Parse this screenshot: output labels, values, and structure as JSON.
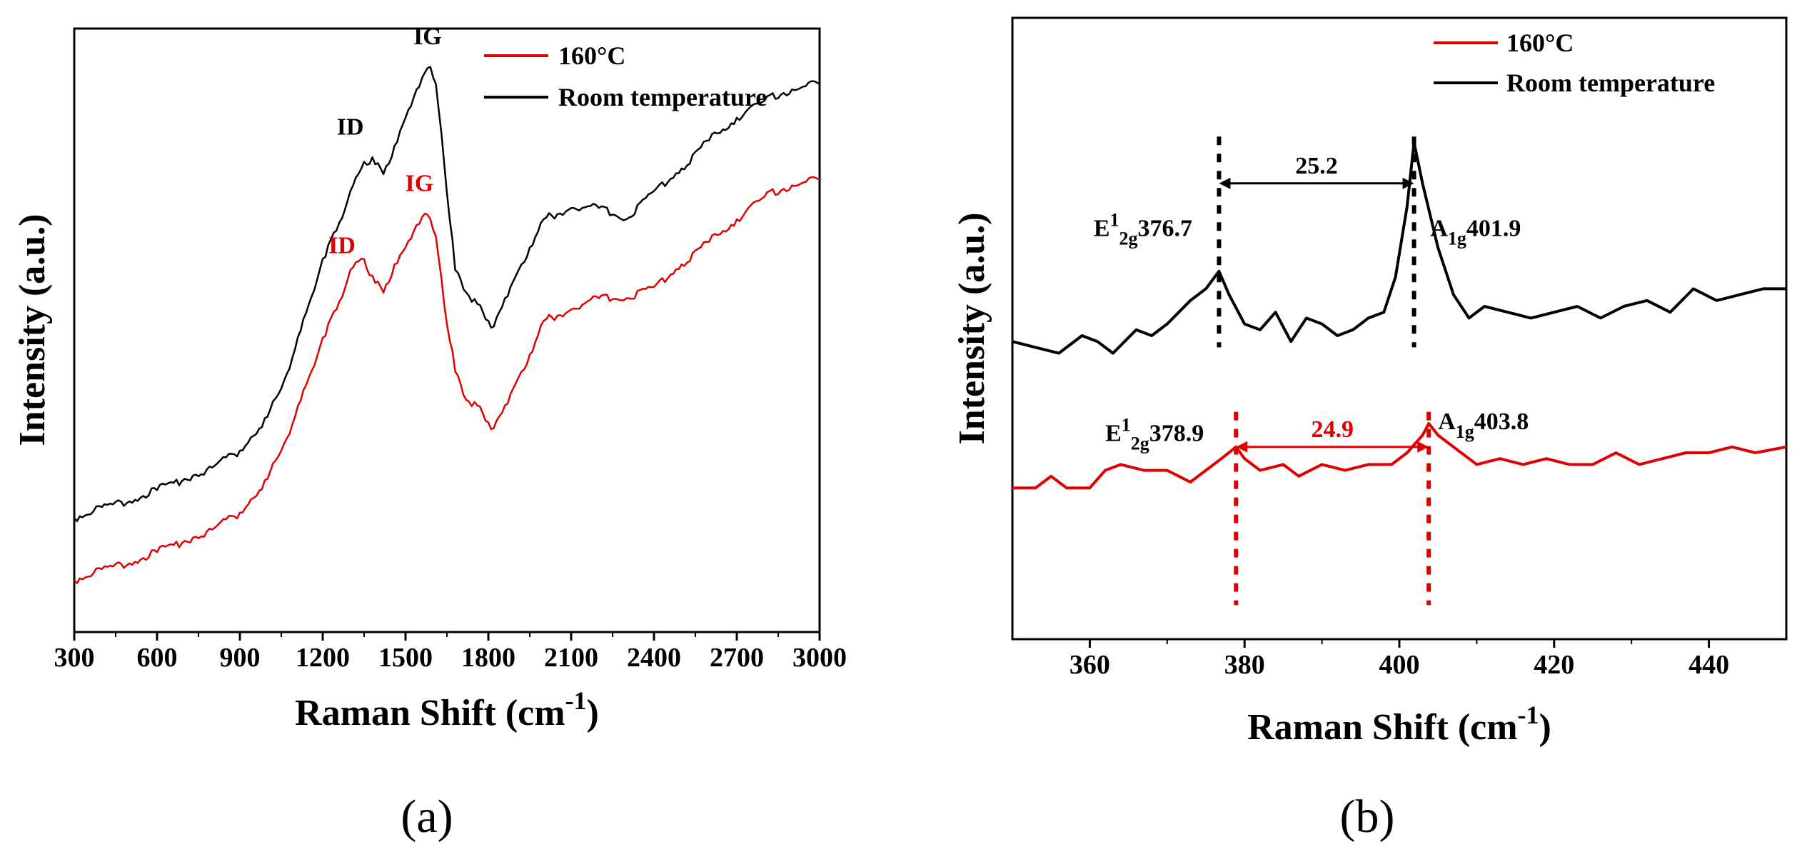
{
  "chart_data": [
    {
      "id": "a",
      "type": "line",
      "panel_label": "(a)",
      "xlabel": "Raman Shift (cm",
      "xlabel_sup": "-1",
      "xlabel_close": ")",
      "ylabel": "Intensity (a.u.)",
      "xlim": [
        300,
        3000
      ],
      "ylim": [
        0,
        1
      ],
      "xticks": [
        "300",
        "600",
        "900",
        "1200",
        "1500",
        "1800",
        "2100",
        "2400",
        "2700",
        "3000"
      ],
      "legend": [
        "160°C",
        "Room temperature"
      ],
      "series": [
        {
          "name": "160°C",
          "color": "#e00000",
          "x": [
            300,
            400,
            500,
            600,
            700,
            800,
            900,
            1000,
            1050,
            1100,
            1150,
            1200,
            1250,
            1300,
            1340,
            1380,
            1420,
            1460,
            1500,
            1540,
            1570,
            1590,
            1610,
            1640,
            1680,
            1720,
            1760,
            1800,
            1820,
            1860,
            1900,
            1950,
            2000,
            2100,
            2200,
            2300,
            2400,
            2500,
            2600,
            2700,
            2800,
            2900,
            3000
          ],
          "y": [
            0.06,
            0.08,
            0.09,
            0.11,
            0.13,
            0.15,
            0.18,
            0.24,
            0.29,
            0.35,
            0.42,
            0.49,
            0.54,
            0.61,
            0.63,
            0.6,
            0.57,
            0.62,
            0.65,
            0.69,
            0.71,
            0.7,
            0.67,
            0.55,
            0.43,
            0.38,
            0.37,
            0.34,
            0.33,
            0.37,
            0.41,
            0.46,
            0.52,
            0.54,
            0.56,
            0.56,
            0.58,
            0.62,
            0.66,
            0.7,
            0.74,
            0.76,
            0.77
          ]
        },
        {
          "name": "Room temperature",
          "color": "#000000",
          "x": [
            300,
            400,
            500,
            600,
            700,
            800,
            900,
            1000,
            1050,
            1100,
            1150,
            1200,
            1250,
            1300,
            1340,
            1380,
            1420,
            1460,
            1500,
            1540,
            1570,
            1590,
            1610,
            1640,
            1680,
            1720,
            1760,
            1800,
            1820,
            1860,
            1900,
            1950,
            2000,
            2100,
            2200,
            2300,
            2400,
            2500,
            2600,
            2700,
            2800,
            2900,
            3000
          ],
          "y": [
            0.17,
            0.19,
            0.2,
            0.22,
            0.24,
            0.26,
            0.29,
            0.35,
            0.4,
            0.47,
            0.55,
            0.63,
            0.68,
            0.75,
            0.79,
            0.81,
            0.78,
            0.83,
            0.88,
            0.93,
            0.96,
            0.97,
            0.94,
            0.8,
            0.61,
            0.57,
            0.55,
            0.52,
            0.51,
            0.56,
            0.6,
            0.65,
            0.7,
            0.72,
            0.72,
            0.7,
            0.75,
            0.79,
            0.84,
            0.88,
            0.91,
            0.93,
            0.94
          ]
        }
      ],
      "annotations": [
        {
          "text": "IG",
          "x": 1580,
          "y": 1.01,
          "color": "#000000"
        },
        {
          "text": "ID",
          "x": 1300,
          "y": 0.85,
          "color": "#000000"
        },
        {
          "text": "IG",
          "x": 1550,
          "y": 0.75,
          "color": "#e00000"
        },
        {
          "text": "ID",
          "x": 1270,
          "y": 0.64,
          "color": "#e00000"
        }
      ]
    },
    {
      "id": "b",
      "type": "line",
      "panel_label": "(b)",
      "xlabel": "Raman Shift (cm",
      "xlabel_sup": "-1",
      "xlabel_close": ")",
      "ylabel": "Intensity (a.u.)",
      "xlim": [
        350,
        450
      ],
      "ylim": [
        0,
        1
      ],
      "xticks": [
        "360",
        "380",
        "400",
        "420",
        "440"
      ],
      "legend": [
        "160°C",
        "Room temperature"
      ],
      "series": [
        {
          "name": "160°C",
          "color": "#e00000",
          "x": [
            350,
            353,
            355,
            357,
            360,
            362,
            364,
            367,
            370,
            373,
            375,
            377,
            378.9,
            380,
            382,
            385,
            387,
            390,
            393,
            396,
            399,
            401,
            403,
            403.8,
            405,
            407,
            410,
            413,
            416,
            419,
            422,
            425,
            428,
            431,
            434,
            437,
            440,
            443,
            446,
            450
          ],
          "y": [
            0.24,
            0.24,
            0.26,
            0.24,
            0.24,
            0.27,
            0.28,
            0.27,
            0.27,
            0.25,
            0.27,
            0.29,
            0.31,
            0.29,
            0.27,
            0.28,
            0.26,
            0.28,
            0.27,
            0.28,
            0.28,
            0.3,
            0.33,
            0.35,
            0.33,
            0.31,
            0.28,
            0.29,
            0.28,
            0.29,
            0.28,
            0.28,
            0.3,
            0.28,
            0.29,
            0.3,
            0.3,
            0.31,
            0.3,
            0.31
          ]
        },
        {
          "name": "Room temperature",
          "color": "#000000",
          "x": [
            350,
            353,
            356,
            359,
            361,
            363,
            366,
            368,
            370,
            373,
            375,
            376.7,
            378,
            380,
            382,
            384,
            386,
            388,
            390,
            392,
            394,
            396,
            398,
            399.5,
            401,
            401.9,
            403,
            405,
            407,
            409,
            411,
            414,
            417,
            420,
            423,
            426,
            429,
            432,
            435,
            438,
            441,
            444,
            447,
            450
          ],
          "y": [
            0.49,
            0.48,
            0.47,
            0.5,
            0.49,
            0.47,
            0.51,
            0.5,
            0.52,
            0.56,
            0.58,
            0.61,
            0.57,
            0.52,
            0.51,
            0.54,
            0.49,
            0.53,
            0.52,
            0.5,
            0.51,
            0.53,
            0.54,
            0.6,
            0.72,
            0.83,
            0.76,
            0.65,
            0.57,
            0.53,
            0.55,
            0.54,
            0.53,
            0.54,
            0.55,
            0.53,
            0.55,
            0.56,
            0.54,
            0.58,
            0.56,
            0.57,
            0.58,
            0.58
          ]
        }
      ],
      "annotations": [
        {
          "main": "E",
          "sup": "1",
          "sub": "2g",
          "num": "376.7",
          "x": 360.5,
          "y": 0.67,
          "color": "#000000"
        },
        {
          "main": "A",
          "sub": "1g",
          "num": "401.9",
          "x": 404,
          "y": 0.67,
          "color": "#000000"
        },
        {
          "main": "E",
          "sup": "1",
          "sub": "2g",
          "num": "378.9",
          "x": 362,
          "y": 0.32,
          "color": "#000000"
        },
        {
          "main": "A",
          "sub": "1g",
          "num": "403.8",
          "x": 405,
          "y": 0.34,
          "color": "#000000"
        }
      ],
      "vlines": [
        {
          "x": 376.7,
          "y0": 0.48,
          "y1": 0.84,
          "color": "#000000"
        },
        {
          "x": 401.9,
          "y0": 0.48,
          "y1": 0.84,
          "color": "#000000"
        },
        {
          "x": 378.9,
          "y0": 0.04,
          "y1": 0.37,
          "color": "#e00000"
        },
        {
          "x": 403.8,
          "y0": 0.04,
          "y1": 0.37,
          "color": "#e00000"
        }
      ],
      "spacings": [
        {
          "label": "25.2",
          "x0": 376.7,
          "x1": 401.9,
          "y": 0.76,
          "color": "#000000"
        },
        {
          "label": "24.9",
          "x0": 378.9,
          "x1": 403.8,
          "y": 0.31,
          "color": "#e00000"
        }
      ]
    }
  ]
}
